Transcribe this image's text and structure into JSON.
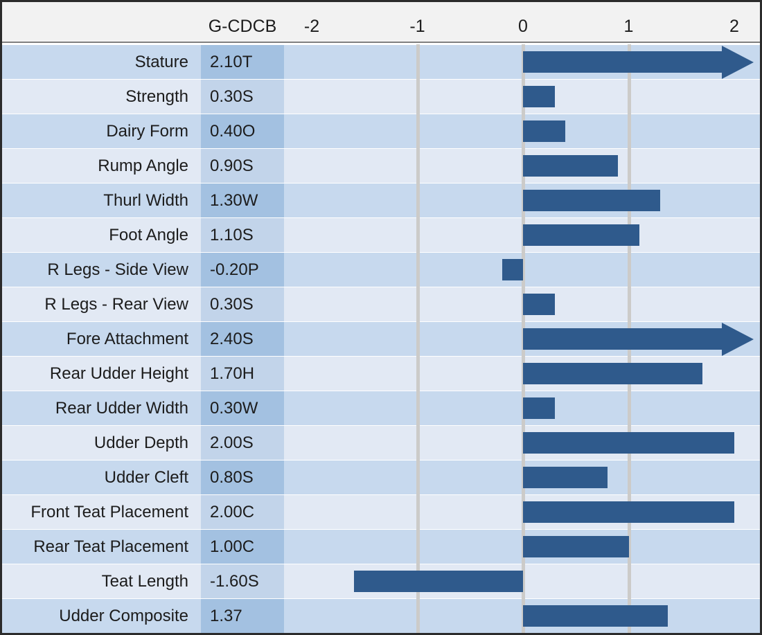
{
  "header": {
    "value_col_label": "G-CDCB",
    "tick_labels": [
      "-2",
      "-1",
      "0",
      "1",
      "2"
    ]
  },
  "colors": {
    "bar": "#2f5a8c",
    "grid": "#cccbc9",
    "row_odd_bg": "#c7d9ee",
    "row_odd_value_bg": "#a3c1e1",
    "row_even_bg": "#e2e9f4",
    "row_even_value_bg": "#c2d4ea",
    "header_bg": "#f2f2f2",
    "header_separator": "#808080",
    "outer_border": "#2b2b2b",
    "text": "#1c1c1c"
  },
  "chart_data": {
    "type": "bar",
    "orientation": "horizontal",
    "title": "",
    "value_column_header": "G-CDCB",
    "axis": {
      "min": -2.26,
      "max": 2.25,
      "tick_values": [
        -2,
        -1,
        0,
        1,
        2
      ],
      "gridline_values": [
        -1,
        0,
        1
      ],
      "grid_on": true
    },
    "rows": [
      {
        "label": "Stature",
        "value_text": "2.10T",
        "value": 2.1,
        "overflow_arrow": true
      },
      {
        "label": "Strength",
        "value_text": "0.30S",
        "value": 0.3,
        "overflow_arrow": false
      },
      {
        "label": "Dairy Form",
        "value_text": "0.40O",
        "value": 0.4,
        "overflow_arrow": false
      },
      {
        "label": "Rump Angle",
        "value_text": "0.90S",
        "value": 0.9,
        "overflow_arrow": false
      },
      {
        "label": "Thurl Width",
        "value_text": "1.30W",
        "value": 1.3,
        "overflow_arrow": false
      },
      {
        "label": "Foot Angle",
        "value_text": "1.10S",
        "value": 1.1,
        "overflow_arrow": false
      },
      {
        "label": "R Legs - Side View",
        "value_text": "-0.20P",
        "value": -0.2,
        "overflow_arrow": false
      },
      {
        "label": "R Legs - Rear View",
        "value_text": "0.30S",
        "value": 0.3,
        "overflow_arrow": false
      },
      {
        "label": "Fore Attachment",
        "value_text": "2.40S",
        "value": 2.4,
        "overflow_arrow": true
      },
      {
        "label": "Rear Udder Height",
        "value_text": "1.70H",
        "value": 1.7,
        "overflow_arrow": false
      },
      {
        "label": "Rear Udder Width",
        "value_text": "0.30W",
        "value": 0.3,
        "overflow_arrow": false
      },
      {
        "label": "Udder Depth",
        "value_text": "2.00S",
        "value": 2.0,
        "overflow_arrow": false
      },
      {
        "label": "Udder Cleft",
        "value_text": "0.80S",
        "value": 0.8,
        "overflow_arrow": false
      },
      {
        "label": "Front Teat Placement",
        "value_text": "2.00C",
        "value": 2.0,
        "overflow_arrow": false
      },
      {
        "label": "Rear Teat Placement",
        "value_text": "1.00C",
        "value": 1.0,
        "overflow_arrow": false
      },
      {
        "label": "Teat Length",
        "value_text": "-1.60S",
        "value": -1.6,
        "overflow_arrow": false
      },
      {
        "label": "Udder Composite",
        "value_text": "1.37",
        "value": 1.37,
        "overflow_arrow": false
      }
    ]
  }
}
